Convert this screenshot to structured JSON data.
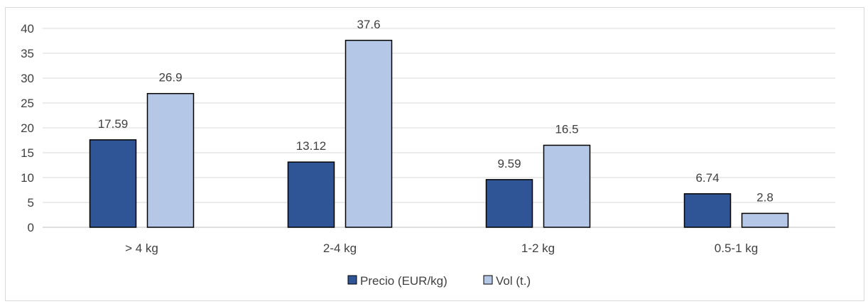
{
  "chart_data": {
    "type": "bar",
    "categories": [
      "> 4 kg",
      "2-4 kg",
      "1-2 kg",
      "0.5-1 kg"
    ],
    "series": [
      {
        "name": "Precio (EUR/kg)",
        "values": [
          17.59,
          13.12,
          9.59,
          6.74
        ],
        "color": "#2f5597"
      },
      {
        "name": "Vol (t.)",
        "values": [
          26.9,
          37.6,
          16.5,
          2.8
        ],
        "color": "#b4c7e7"
      }
    ],
    "data_labels": [
      [
        "17.59",
        "13.12",
        "9.59",
        "6.74"
      ],
      [
        "26.9",
        "37.6",
        "16.5",
        "2.8"
      ]
    ],
    "yticks": [
      "0",
      "5",
      "10",
      "15",
      "20",
      "25",
      "30",
      "35",
      "40"
    ],
    "ylim": [
      0,
      40
    ],
    "grid": true,
    "legend_position": "bottom",
    "title": "",
    "xlabel": "",
    "ylabel": ""
  }
}
